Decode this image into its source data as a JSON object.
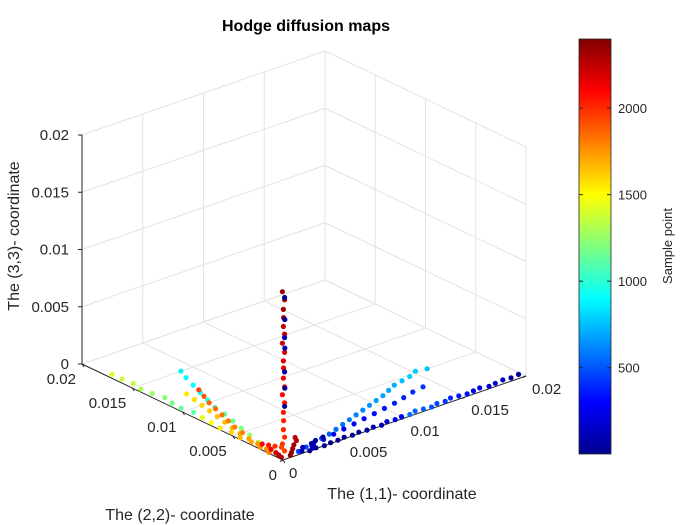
{
  "chart_data": {
    "type": "scatter",
    "projection": "3d",
    "title": "Hodge diffusion maps",
    "xlabel": "The (1,1)- coordinate",
    "ylabel": "The (2,2)- coordinate",
    "zlabel": "The (3,3)- coordinate",
    "xlim": [
      0,
      0.02
    ],
    "ylim": [
      0,
      0.02
    ],
    "zlim": [
      0,
      0.02
    ],
    "xticks": [
      {
        "v": 0,
        "label": "0"
      },
      {
        "v": 0.005,
        "label": "0.005"
      },
      {
        "v": 0.01,
        "label": "0.01"
      },
      {
        "v": 0.015,
        "label": "0.015"
      },
      {
        "v": 0.02,
        "label": "0.02"
      }
    ],
    "yticks": [
      {
        "v": 0,
        "label": "0"
      },
      {
        "v": 0.005,
        "label": "0.005"
      },
      {
        "v": 0.01,
        "label": "0.01"
      },
      {
        "v": 0.015,
        "label": "0.015"
      },
      {
        "v": 0.02,
        "label": "0.02"
      }
    ],
    "zticks": [
      {
        "v": 0,
        "label": "0"
      },
      {
        "v": 0.005,
        "label": "0.005"
      },
      {
        "v": 0.01,
        "label": "0.01"
      },
      {
        "v": 0.015,
        "label": "0.015"
      },
      {
        "v": 0.02,
        "label": "0.02"
      }
    ],
    "grid": true,
    "colormap": "jet",
    "colorbar": {
      "label": "Sample point",
      "range": [
        1,
        2400
      ],
      "ticks": [
        {
          "v": 500,
          "label": "500"
        },
        {
          "v": 1000,
          "label": "1000"
        },
        {
          "v": 1500,
          "label": "1500"
        },
        {
          "v": 2000,
          "label": "2000"
        }
      ]
    },
    "points": [
      [
        0.0198,
        0.0005,
        0.0,
        60
      ],
      [
        0.0191,
        0.0004,
        0.0,
        80
      ],
      [
        0.0185,
        0.0005,
        0.0,
        120
      ],
      [
        0.0178,
        0.0004,
        0.0,
        150
      ],
      [
        0.0172,
        0.0003,
        0.0,
        200
      ],
      [
        0.0166,
        0.0005,
        0.0,
        240
      ],
      [
        0.016,
        0.0004,
        0.0,
        280
      ],
      [
        0.0154,
        0.0003,
        0.0,
        320
      ],
      [
        0.0148,
        0.0004,
        0.0,
        350
      ],
      [
        0.0142,
        0.0005,
        0.0,
        390
      ],
      [
        0.0136,
        0.0003,
        0.0,
        420
      ],
      [
        0.013,
        0.0004,
        0.0,
        460
      ],
      [
        0.0124,
        0.0002,
        0.0,
        500
      ],
      [
        0.0118,
        0.0003,
        0.0,
        520
      ],
      [
        0.0112,
        0.0004,
        0.0,
        540
      ],
      [
        0.0106,
        0.0002,
        0.0,
        560
      ],
      [
        0.01,
        0.0003,
        0.0,
        300
      ],
      [
        0.0094,
        0.0002,
        0.0,
        250
      ],
      [
        0.0088,
        0.0003,
        0.0,
        180
      ],
      [
        0.0082,
        0.0001,
        0.0,
        120
      ],
      [
        0.0076,
        0.0002,
        0.0,
        100
      ],
      [
        0.007,
        0.0001,
        0.0,
        80
      ],
      [
        0.0064,
        0.0002,
        0.0,
        60
      ],
      [
        0.0058,
        0.0001,
        0.0,
        40
      ],
      [
        0.0052,
        0.0002,
        0.0,
        30
      ],
      [
        0.0046,
        0.0001,
        0.0,
        20
      ],
      [
        0.004,
        0.0001,
        0.0,
        15
      ],
      [
        0.0034,
        0.0,
        0.0,
        10
      ],
      [
        0.0028,
        0.0001,
        0.0,
        8
      ],
      [
        0.0022,
        0.0,
        0.0,
        5
      ],
      [
        0.016,
        0.005,
        0.0,
        760
      ],
      [
        0.0152,
        0.0052,
        0.0,
        780
      ],
      [
        0.0144,
        0.0048,
        0.0,
        800
      ],
      [
        0.0136,
        0.0046,
        0.0,
        740
      ],
      [
        0.0128,
        0.0044,
        0.0,
        720
      ],
      [
        0.012,
        0.004,
        0.0,
        700
      ],
      [
        0.0112,
        0.0036,
        0.0,
        690
      ],
      [
        0.0104,
        0.0033,
        0.0,
        670
      ],
      [
        0.0096,
        0.003,
        0.0,
        650
      ],
      [
        0.0088,
        0.0027,
        0.0,
        630
      ],
      [
        0.008,
        0.0024,
        0.0,
        610
      ],
      [
        0.0072,
        0.0021,
        0.0,
        590
      ],
      [
        0.0064,
        0.0018,
        0.0,
        570
      ],
      [
        0.0056,
        0.0015,
        0.0,
        550
      ],
      [
        0.0048,
        0.0012,
        0.0,
        530
      ],
      [
        0.004,
        0.001,
        0.0,
        510
      ],
      [
        0.0032,
        0.0008,
        0.0,
        490
      ],
      [
        0.0024,
        0.0006,
        0.0,
        470
      ],
      [
        0.0016,
        0.0004,
        0.0,
        450
      ],
      [
        0.014,
        0.003,
        0.0,
        420
      ],
      [
        0.013,
        0.0028,
        0.0,
        400
      ],
      [
        0.012,
        0.0025,
        0.0,
        380
      ],
      [
        0.011,
        0.0022,
        0.0,
        360
      ],
      [
        0.01,
        0.002,
        0.0,
        340
      ],
      [
        0.009,
        0.0018,
        0.0,
        320
      ],
      [
        0.008,
        0.0016,
        0.0,
        300
      ],
      [
        0.007,
        0.0014,
        0.0,
        280
      ],
      [
        0.006,
        0.0012,
        0.0,
        260
      ],
      [
        0.005,
        0.001,
        0.0,
        240
      ],
      [
        0.004,
        0.0008,
        0.0,
        220
      ],
      [
        0.003,
        0.0006,
        0.0,
        200
      ],
      [
        0.0004,
        0.0175,
        0.0,
        1420
      ],
      [
        0.0004,
        0.0165,
        0.0,
        1380
      ],
      [
        0.0005,
        0.0155,
        0.0,
        1350
      ],
      [
        0.0003,
        0.0145,
        0.0,
        1300
      ],
      [
        0.0004,
        0.0135,
        0.0,
        1260
      ],
      [
        0.0006,
        0.0125,
        0.0,
        1220
      ],
      [
        0.0004,
        0.0115,
        0.0,
        1180
      ],
      [
        0.0003,
        0.0105,
        0.0,
        1150
      ],
      [
        0.0005,
        0.0095,
        0.0,
        1120
      ],
      [
        0.0004,
        0.0085,
        0.0,
        1450
      ],
      [
        0.0003,
        0.0075,
        0.0,
        1500
      ],
      [
        0.0002,
        0.0065,
        0.0,
        1550
      ],
      [
        0.0003,
        0.0055,
        0.0,
        1600
      ],
      [
        0.0002,
        0.0045,
        0.0,
        1650
      ],
      [
        0.0003,
        0.0035,
        0.0,
        1700
      ],
      [
        0.0002,
        0.0025,
        0.0,
        1750
      ],
      [
        0.0001,
        0.0015,
        0.0,
        1800
      ],
      [
        0.004,
        0.015,
        0.0,
        880
      ],
      [
        0.0036,
        0.014,
        0.0,
        900
      ],
      [
        0.0032,
        0.0128,
        0.0,
        920
      ],
      [
        0.0028,
        0.0116,
        0.0,
        950
      ],
      [
        0.0024,
        0.0104,
        0.0,
        1000
      ],
      [
        0.002,
        0.0092,
        0.0,
        1050
      ],
      [
        0.0018,
        0.008,
        0.0,
        1100
      ],
      [
        0.0015,
        0.0068,
        0.0,
        1150
      ],
      [
        0.0012,
        0.0056,
        0.0,
        1200
      ],
      [
        0.0009,
        0.0044,
        0.0,
        1250
      ],
      [
        0.0006,
        0.0032,
        0.0,
        1300
      ],
      [
        0.0004,
        0.002,
        0.0,
        1350
      ],
      [
        0.002,
        0.012,
        0.0,
        1550
      ],
      [
        0.0018,
        0.011,
        0.0,
        1580
      ],
      [
        0.0016,
        0.01,
        0.0,
        1600
      ],
      [
        0.0014,
        0.009,
        0.0,
        1620
      ],
      [
        0.0012,
        0.008,
        0.0,
        1640
      ],
      [
        0.001,
        0.007,
        0.0,
        1660
      ],
      [
        0.0008,
        0.006,
        0.0,
        1680
      ],
      [
        0.0006,
        0.005,
        0.0,
        1700
      ],
      [
        0.0005,
        0.004,
        0.0,
        1720
      ],
      [
        0.0004,
        0.003,
        0.0,
        1740
      ],
      [
        0.0003,
        0.002,
        0.0,
        1760
      ],
      [
        0.003,
        0.012,
        0.0,
        1950
      ],
      [
        0.0026,
        0.011,
        0.0,
        1900
      ],
      [
        0.0022,
        0.01,
        0.0,
        1870
      ],
      [
        0.0019,
        0.009,
        0.0,
        1850
      ],
      [
        0.0016,
        0.008,
        0.0,
        1830
      ],
      [
        0.0013,
        0.007,
        0.0,
        1810
      ],
      [
        0.001,
        0.006,
        0.0,
        1800
      ],
      [
        0.0008,
        0.005,
        0.0,
        1790
      ],
      [
        0.0002,
        0.0003,
        0.0145,
        2350
      ],
      [
        0.0003,
        0.0002,
        0.0138,
        2300
      ],
      [
        0.0002,
        0.0002,
        0.013,
        2320
      ],
      [
        0.0003,
        0.0003,
        0.0122,
        2280
      ],
      [
        0.0002,
        0.0002,
        0.0115,
        2260
      ],
      [
        0.0003,
        0.0002,
        0.0108,
        2240
      ],
      [
        0.0002,
        0.0003,
        0.01,
        2220
      ],
      [
        0.0003,
        0.0002,
        0.0092,
        2200
      ],
      [
        0.0002,
        0.0002,
        0.0085,
        2180
      ],
      [
        0.0003,
        0.0003,
        0.0078,
        2160
      ],
      [
        0.0002,
        0.0002,
        0.007,
        2140
      ],
      [
        0.0003,
        0.0002,
        0.0062,
        2120
      ],
      [
        0.0002,
        0.0003,
        0.0055,
        2100
      ],
      [
        0.0003,
        0.0002,
        0.0048,
        2080
      ],
      [
        0.0002,
        0.0002,
        0.004,
        2060
      ],
      [
        0.0003,
        0.0003,
        0.0032,
        2040
      ],
      [
        0.0002,
        0.0002,
        0.0025,
        2020
      ],
      [
        0.0003,
        0.0002,
        0.0018,
        2000
      ],
      [
        0.0002,
        0.0003,
        0.0012,
        1980
      ],
      [
        0.0003,
        0.0002,
        0.0006,
        1960
      ],
      [
        0.0003,
        0.0002,
        0.014,
        60
      ],
      [
        0.0004,
        0.0003,
        0.012,
        80
      ],
      [
        0.0003,
        0.0002,
        0.0105,
        100
      ],
      [
        0.0004,
        0.0003,
        0.0095,
        120
      ],
      [
        0.0003,
        0.0002,
        0.0075,
        90
      ],
      [
        0.0004,
        0.0003,
        0.006,
        70
      ],
      [
        0.0003,
        0.0002,
        0.0045,
        50
      ],
      [
        0.001,
        0.0,
        0.0016,
        2250
      ],
      [
        0.0011,
        0.0,
        0.0013,
        2280
      ],
      [
        0.0009,
        0.0,
        0.001,
        2300
      ],
      [
        0.0008,
        0.0,
        0.0007,
        2320
      ],
      [
        0.0007,
        0.0,
        0.0004,
        2340
      ],
      [
        0.0006,
        0.0,
        0.0002,
        2360
      ],
      [
        0.003,
        0.0008,
        0.0,
        90
      ],
      [
        0.0035,
        0.001,
        0.0,
        70
      ],
      [
        0.0028,
        0.0005,
        0.0,
        110
      ],
      [
        0.0042,
        0.0011,
        0.0,
        60
      ],
      [
        0.0022,
        0.0007,
        0.0,
        130
      ],
      [
        0.0018,
        0.0003,
        0.0,
        100
      ],
      [
        0.0026,
        0.0002,
        0.0,
        140
      ],
      [
        0.0006,
        0.0028,
        0.0,
        2100
      ],
      [
        0.0008,
        0.0024,
        0.0,
        2050
      ],
      [
        0.001,
        0.002,
        0.0,
        2000
      ],
      [
        0.0012,
        0.0016,
        0.0,
        1950
      ],
      [
        0.0005,
        0.0018,
        0.0,
        2150
      ],
      [
        0.0004,
        0.0012,
        0.0,
        2200
      ],
      [
        0.0003,
        0.0008,
        0.0,
        2250
      ],
      [
        0.0002,
        0.0004,
        0.0,
        2300
      ]
    ]
  }
}
